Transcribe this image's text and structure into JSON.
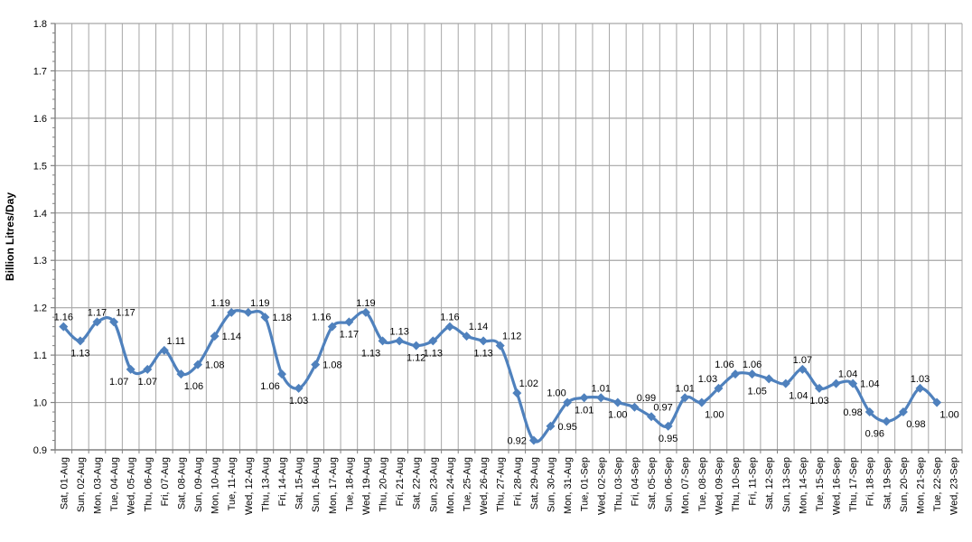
{
  "chart_data": {
    "type": "line",
    "title": "",
    "xlabel": "",
    "ylabel": "Billion Litres/Day",
    "ylim": [
      0.9,
      1.8
    ],
    "ytick_step": 0.1,
    "y_minor_tick_step": 0.02,
    "grid": "major horizontal and vertical gridlines on",
    "legend": "none",
    "smoothed_line": true,
    "marker": "diamond",
    "value_label_decimals": 2,
    "ytick_labels": [
      "0.9",
      "1.0",
      "1.1",
      "1.2",
      "1.3",
      "1.4",
      "1.5",
      "1.6",
      "1.7",
      "1.8"
    ],
    "categories": [
      "Sat, 01-Aug",
      "Sun, 02-Aug",
      "Mon, 03-Aug",
      "Tue, 04-Aug",
      "Wed, 05-Aug",
      "Thu, 06-Aug",
      "Fri, 07-Aug",
      "Sat, 08-Aug",
      "Sun, 09-Aug",
      "Mon, 10-Aug",
      "Tue, 11-Aug",
      "Wed, 12-Aug",
      "Thu, 13-Aug",
      "Fri, 14-Aug",
      "Sat, 15-Aug",
      "Sun, 16-Aug",
      "Mon, 17-Aug",
      "Tue, 18-Aug",
      "Wed, 19-Aug",
      "Thu, 20-Aug",
      "Fri, 21-Aug",
      "Sat, 22-Aug",
      "Sun, 23-Aug",
      "Mon, 24-Aug",
      "Tue, 25-Aug",
      "Wed, 26-Aug",
      "Thu, 27-Aug",
      "Fri, 28-Aug",
      "Sat, 29-Aug",
      "Sun, 30-Aug",
      "Mon, 31-Aug",
      "Tue, 01-Sep",
      "Wed, 02-Sep",
      "Thu, 03-Sep",
      "Fri, 04-Sep",
      "Sat, 05-Sep",
      "Sun, 06-Sep",
      "Mon, 07-Sep",
      "Tue, 08-Sep",
      "Wed, 09-Sep",
      "Thu, 10-Sep",
      "Fri, 11-Sep",
      "Sat, 12-Sep",
      "Sun, 13-Sep",
      "Mon, 14-Sep",
      "Tue, 15-Sep",
      "Wed, 16-Sep",
      "Thu, 17-Sep",
      "Fri, 18-Sep",
      "Sat, 19-Sep",
      "Sun, 20-Sep",
      "Mon, 21-Sep",
      "Tue, 22-Sep",
      "Wed, 23-Sep"
    ],
    "values": [
      1.16,
      1.13,
      1.17,
      1.17,
      1.07,
      1.07,
      1.11,
      1.06,
      1.08,
      1.14,
      1.19,
      1.19,
      1.18,
      1.06,
      1.03,
      1.08,
      1.16,
      1.17,
      1.19,
      1.13,
      1.13,
      1.12,
      1.13,
      1.16,
      1.14,
      1.13,
      1.12,
      1.02,
      0.92,
      0.95,
      1.0,
      1.01,
      1.01,
      1.0,
      0.99,
      0.97,
      0.95,
      1.01,
      1.0,
      1.03,
      1.06,
      1.06,
      1.05,
      1.04,
      1.07,
      1.03,
      1.04,
      1.04,
      0.98,
      0.96,
      0.98,
      1.03,
      1.0,
      null
    ],
    "label_positions": [
      "a",
      "b",
      "a",
      "ar",
      "bl",
      "b",
      "ar",
      "br",
      "r",
      "r",
      "al",
      "ar",
      "r",
      "bl",
      "b",
      "r",
      "al",
      "b",
      "a",
      "bl",
      "a",
      "b",
      "b",
      "a",
      "ar",
      "b",
      "ar",
      "ar",
      "l",
      "r",
      "al",
      "b",
      "a",
      "b",
      "ar",
      "ar",
      "b",
      "a",
      "br",
      "al",
      "al",
      "a",
      "bl",
      "br",
      "a",
      "b",
      "ar",
      "r",
      "l",
      "bl",
      "br",
      "a",
      "br",
      null
    ],
    "colors": {
      "line": "#4F81BD",
      "marker": "#4F81BD",
      "gridline": "#A6A6A6",
      "axis": "#808080",
      "text": "#000000",
      "background": "#FFFFFF"
    }
  }
}
